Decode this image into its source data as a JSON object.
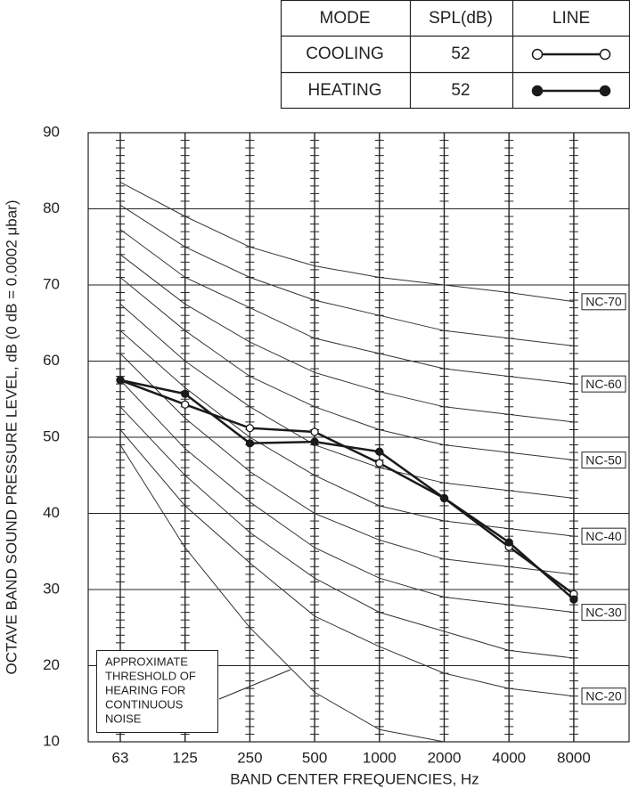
{
  "chart_data": {
    "type": "line",
    "table_headers": [
      "MODE",
      "SPL(dB)",
      "LINE"
    ],
    "series": [
      {
        "name": "COOLING",
        "spl": 52,
        "marker": "open",
        "color": "#1a1a1a",
        "values": [
          57.5,
          54.3,
          51.2,
          50.7,
          46.6,
          42,
          35.6,
          29.4
        ]
      },
      {
        "name": "HEATING",
        "spl": 52,
        "marker": "filled",
        "color": "#1a1a1a",
        "values": [
          57.5,
          55.7,
          49.2,
          49.4,
          48.1,
          42,
          36.2,
          28.7
        ]
      }
    ],
    "categories": [
      "63",
      "125",
      "250",
      "500",
      "1000",
      "2000",
      "4000",
      "8000"
    ],
    "ylim": [
      10,
      90
    ],
    "yticks": [
      10,
      20,
      30,
      40,
      50,
      60,
      70,
      80,
      90
    ],
    "grid": true,
    "ylabel": "OCTAVE BAND SOUND PRESSURE LEVEL, dB (0 dB = 0.0002 μbar)",
    "xlabel": "BAND CENTER FREQUENCIES, Hz",
    "nc_curves": [
      {
        "label": "NC-70",
        "values": [
          83.5,
          79,
          75,
          72.5,
          71,
          70,
          69,
          67.8
        ]
      },
      {
        "values": [
          80.5,
          75,
          71,
          68,
          66,
          64,
          63,
          62
        ]
      },
      {
        "label": "NC-60",
        "values": [
          77.3,
          71,
          67,
          63,
          61,
          59,
          58,
          57
        ]
      },
      {
        "values": [
          74,
          67.5,
          62.5,
          58.5,
          56,
          54,
          53,
          52
        ]
      },
      {
        "label": "NC-50",
        "values": [
          71,
          64,
          58,
          54,
          51,
          49,
          48,
          47
        ]
      },
      {
        "values": [
          67.5,
          60,
          54,
          49,
          46,
          44,
          43,
          42
        ]
      },
      {
        "label": "NC-40",
        "values": [
          64,
          56.5,
          50,
          45,
          41,
          39,
          38,
          37
        ]
      },
      {
        "values": [
          61,
          52.5,
          45.5,
          40,
          36.5,
          34,
          33,
          32
        ]
      },
      {
        "label": "NC-30",
        "values": [
          57.5,
          48.5,
          41.5,
          35.5,
          31.5,
          29,
          28,
          27
        ]
      },
      {
        "values": [
          54,
          45,
          37.5,
          31.5,
          27,
          24.5,
          22,
          21
        ]
      },
      {
        "label": "NC-20",
        "values": [
          51,
          41,
          33.5,
          26.5,
          22.5,
          19,
          17,
          16
        ]
      }
    ],
    "threshold": {
      "values": [
        49,
        35.5,
        25,
        16.5,
        11.6,
        10,
        null,
        null
      ]
    },
    "annotation": [
      "APPROXIMATE",
      "THRESHOLD OF",
      "HEARING FOR",
      "CONTINUOUS",
      "NOISE"
    ]
  }
}
